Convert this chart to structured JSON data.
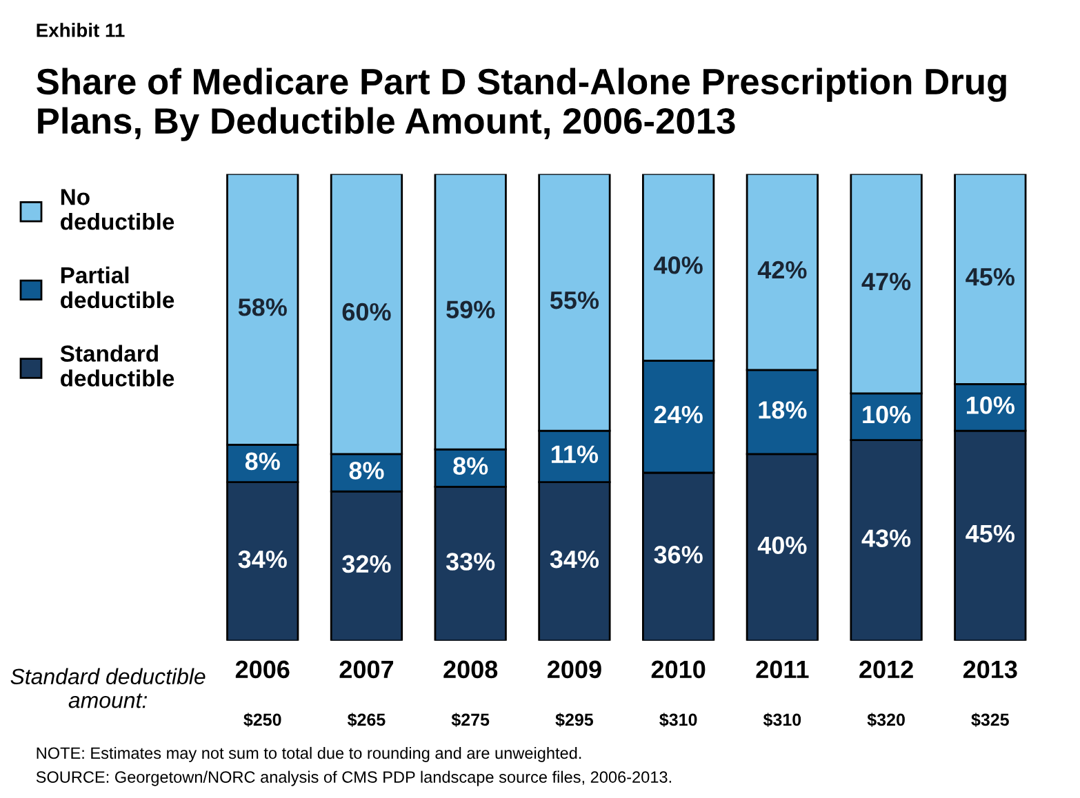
{
  "chart_data": {
    "type": "bar",
    "subtitle": "Exhibit 11",
    "title": "Share of Medicare Part D Stand-Alone Prescription Drug Plans, By Deductible Amount, 2006-2013",
    "xlabel": "Standard deductible amount:",
    "categories": [
      "2006\n$250",
      "2007\n$265",
      "2008\n$275",
      "2009\n$295",
      "2010\n$310",
      "2011\n$310",
      "2012\n$320",
      "2013\n$325"
    ],
    "stacked": true,
    "legend": "top left",
    "series": [
      {
        "name": "Standard deductible",
        "color": "#1b3a5e",
        "values": [
          34,
          32,
          33,
          34,
          36,
          40,
          43,
          45
        ],
        "value_labels": [
          "34%",
          "32%",
          "33%",
          "34%",
          "36%",
          "40%",
          "43%",
          "45%"
        ]
      },
      {
        "name": "Partial deductible",
        "color": "#0f5a91",
        "values": [
          8,
          8,
          8,
          11,
          24,
          18,
          10,
          10
        ],
        "value_labels": [
          "8%",
          "8%",
          "8%",
          "11%",
          "24%",
          "18%",
          "10%",
          "10%"
        ]
      },
      {
        "name": "No deductible",
        "color": "#7fc6ec",
        "values": [
          58,
          60,
          59,
          55,
          40,
          42,
          47,
          45
        ],
        "value_labels": [
          "58%",
          "60%",
          "59%",
          "55%",
          "40%",
          "42%",
          "47%",
          "45%"
        ]
      }
    ],
    "annotations": [
      "NOTE: Estimates may not sum to total due to rounding and are unweighted.",
      "SOURCE: Georgetown/NORC analysis of CMS PDP landscape source files, 2006-2013."
    ]
  }
}
